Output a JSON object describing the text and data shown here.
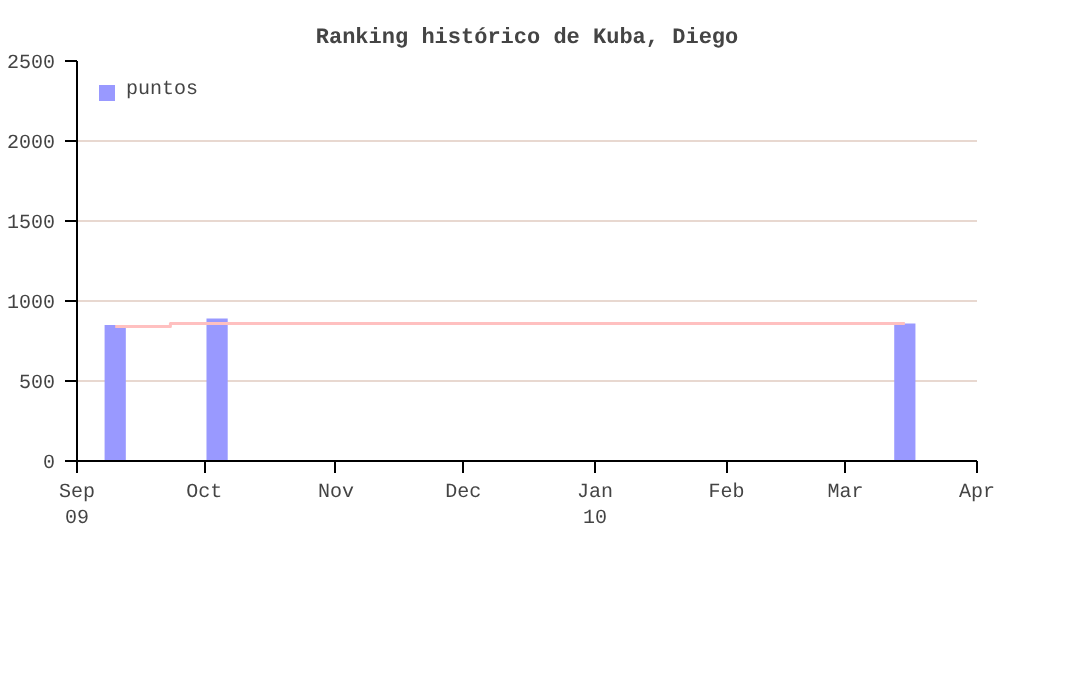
{
  "chart_data": {
    "type": "bar",
    "title": "Ranking histórico de Kuba, Diego",
    "series": [
      {
        "name": "puntos",
        "color": "#9999ff",
        "x": [
          "2009-09-10",
          "2009-10-04",
          "2010-03-15"
        ],
        "values": [
          850,
          890,
          860
        ]
      },
      {
        "type": "step",
        "color": "#ffc0c0",
        "x": [
          "2009-09-10",
          "2009-09-23",
          "2010-03-15"
        ],
        "values": [
          840,
          860,
          860
        ]
      }
    ],
    "xlim": [
      "2009-09-01",
      "2010-04-01"
    ],
    "xticks": [
      {
        "value": "2009-09-01",
        "label": "Sep\n09"
      },
      {
        "value": "2009-10-01",
        "label": "Oct"
      },
      {
        "value": "2009-11-01",
        "label": "Nov"
      },
      {
        "value": "2009-12-01",
        "label": "Dec"
      },
      {
        "value": "2010-01-01",
        "label": "Jan\n10"
      },
      {
        "value": "2010-02-01",
        "label": "Feb"
      },
      {
        "value": "2010-03-01",
        "label": "Mar"
      },
      {
        "value": "2010-04-01",
        "label": "Apr"
      }
    ],
    "ylim": [
      0,
      2500
    ],
    "yticks": [
      0,
      500,
      1000,
      1500,
      2000,
      2500
    ],
    "grid": "y",
    "legend": "top left"
  }
}
